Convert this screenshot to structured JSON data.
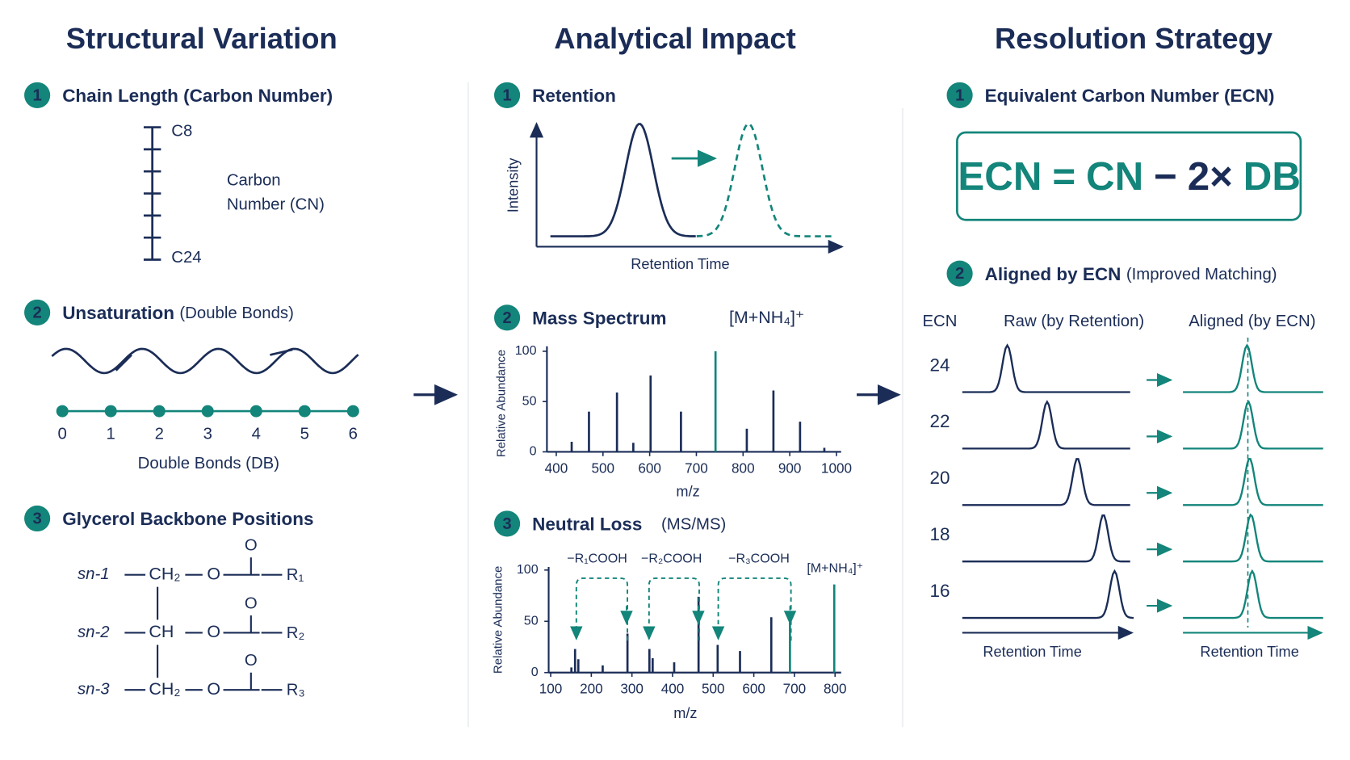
{
  "structural_variation": {
    "title": "Structural Variation",
    "chain_length": {
      "number": "1",
      "heading": "Chain Length (Carbon Number)",
      "top": "C8",
      "bottom": "C24",
      "axis_label": [
        "Carbon",
        "Number (CN)"
      ]
    },
    "unsaturation": {
      "number": "2",
      "heading": "Unsaturation",
      "heading_note": "(Double Bonds)",
      "ticks": [
        0,
        1,
        2,
        3,
        4,
        5,
        6
      ],
      "axis_label": "Double Bonds (DB)"
    },
    "glycerol": {
      "number": "3",
      "heading": "Glycerol Backbone Positions",
      "positions": [
        {
          "label": "sn-1",
          "group": "CH₂",
          "ester_oxygen": "O",
          "carbonyl_oxygen": "O",
          "chain": "R₁"
        },
        {
          "label": "sn-2",
          "group": "CH",
          "ester_oxygen": "O",
          "carbonyl_oxygen": "O",
          "chain": "R₂"
        },
        {
          "label": "sn-3",
          "group": "CH₂",
          "ester_oxygen": "O",
          "carbonyl_oxygen": "O",
          "chain": "R₃"
        }
      ]
    }
  },
  "analytical_impact": {
    "title": "Analytical Impact",
    "retention": {
      "number": "1",
      "heading": "Retention",
      "y_label": "Intensity",
      "x_label": "Retention Time"
    },
    "mass_spectrum": {
      "number": "2",
      "heading": "Mass Spectrum",
      "annotation": "[M+NH₄]⁺",
      "y_label": "Relative Abundance",
      "x_label": "m/z",
      "xlim": [
        380,
        1010
      ],
      "ylim": [
        0,
        105
      ],
      "xticks": [
        400,
        500,
        600,
        700,
        800,
        900,
        1000
      ],
      "yticks": [
        0,
        50,
        100
      ],
      "peaks": {
        "x": [
          433,
          470,
          530,
          565,
          602,
          667,
          741,
          808,
          865,
          922,
          974
        ],
        "values": [
          10,
          40,
          59,
          9,
          76,
          40,
          100,
          23,
          61,
          30,
          4
        ],
        "colors": [
          "#1b2d57",
          "#1b2d57",
          "#1b2d57",
          "#1b2d57",
          "#1b2d57",
          "#1b2d57",
          "#13857a",
          "#1b2d57",
          "#1b2d57",
          "#1b2d57",
          "#1b2d57"
        ]
      }
    },
    "neutral_loss": {
      "number": "3",
      "heading": "Neutral Loss",
      "heading_note": "(MS/MS)",
      "y_label": "Relative Abundance",
      "x_label": "m/z",
      "xlim": [
        95,
        815
      ],
      "ylim": [
        0,
        103
      ],
      "xticks": [
        100,
        200,
        300,
        400,
        500,
        600,
        700,
        800
      ],
      "yticks": [
        0,
        50,
        100
      ],
      "annotations": [
        "−R₁COOH",
        "−R₂COOH",
        "−R₃COOH",
        "[M+NH₄]⁺"
      ],
      "peaks": {
        "x": [
          151,
          160,
          168,
          228,
          289,
          343,
          351,
          404,
          464,
          511,
          566,
          643,
          689,
          798
        ],
        "values": [
          5,
          23,
          13,
          7,
          38,
          23,
          14,
          10,
          74,
          27,
          21,
          54,
          50,
          86
        ],
        "colors": [
          "#1b2d57",
          "#1b2d57",
          "#1b2d57",
          "#1b2d57",
          "#1b2d57",
          "#1b2d57",
          "#1b2d57",
          "#1b2d57",
          "#1b2d57",
          "#1b2d57",
          "#1b2d57",
          "#1b2d57",
          "#13857a",
          "#13857a"
        ]
      }
    }
  },
  "resolution_strategy": {
    "title": "Resolution Strategy",
    "ecn": {
      "number": "1",
      "heading": "Equivalent Carbon Number (ECN)",
      "formula": [
        "ECN",
        "=",
        "CN",
        "−",
        "2×",
        "DB"
      ]
    },
    "aligned": {
      "number": "2",
      "heading": "Aligned by ECN",
      "heading_note": "(Improved Matching)",
      "col_ecn": "ECN",
      "col_raw": "Raw (by Retention)",
      "col_aligned": "Aligned (by ECN)",
      "rows": [
        24,
        22,
        20,
        18,
        16
      ],
      "x_label_raw": "Retention Time",
      "x_label_aligned": "Retention Time"
    }
  }
}
